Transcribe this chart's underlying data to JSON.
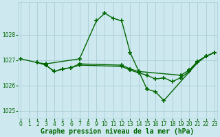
{
  "title": "Graphe pression niveau de la mer (hPa)",
  "background_color": "#cde8ef",
  "grid_color": "#aacdd6",
  "line_color": "#006600",
  "series": [
    {
      "x": [
        0,
        2,
        3,
        7,
        9,
        10,
        11,
        12,
        13,
        15,
        16,
        17,
        21,
        22,
        23
      ],
      "y": [
        1027.05,
        1026.9,
        1026.85,
        1027.05,
        1028.55,
        1028.85,
        1028.65,
        1028.55,
        1027.3,
        1025.85,
        1025.75,
        1025.4,
        1026.9,
        1027.15,
        1027.3
      ]
    },
    {
      "x": [
        2,
        3,
        4,
        5,
        6,
        7,
        12,
        13,
        14,
        15,
        16,
        17,
        18,
        19,
        20,
        21,
        22,
        23
      ],
      "y": [
        1026.9,
        1026.8,
        1026.55,
        1026.65,
        1026.7,
        1026.8,
        1026.75,
        1026.6,
        1026.5,
        1026.4,
        1026.25,
        1026.3,
        1026.15,
        1026.3,
        1026.55,
        1026.95,
        1027.15,
        1027.3
      ]
    },
    {
      "x": [
        3,
        4,
        5,
        6,
        7,
        12,
        13,
        14,
        19,
        20,
        21,
        22,
        23
      ],
      "y": [
        1026.8,
        1026.55,
        1026.65,
        1026.7,
        1026.85,
        1026.8,
        1026.65,
        1026.55,
        1026.4,
        1026.6,
        1026.95,
        1027.15,
        1027.3
      ]
    }
  ],
  "yticks": [
    1025,
    1026,
    1027,
    1028
  ],
  "xtick_labels": [
    "0",
    "1",
    "2",
    "3",
    "4",
    "5",
    "6",
    "7",
    "8",
    "9",
    "10",
    "11",
    "12",
    "13",
    "14",
    "15",
    "16",
    "17",
    "18",
    "19",
    "20",
    "21",
    "22",
    "23"
  ],
  "ylim": [
    1024.7,
    1029.3
  ],
  "xlim": [
    -0.3,
    23.3
  ],
  "marker": "+",
  "markersize": 4,
  "markeredgewidth": 1.2,
  "linewidth": 1.0,
  "fontsize_title": 7,
  "fontsize_ticks": 5.5
}
